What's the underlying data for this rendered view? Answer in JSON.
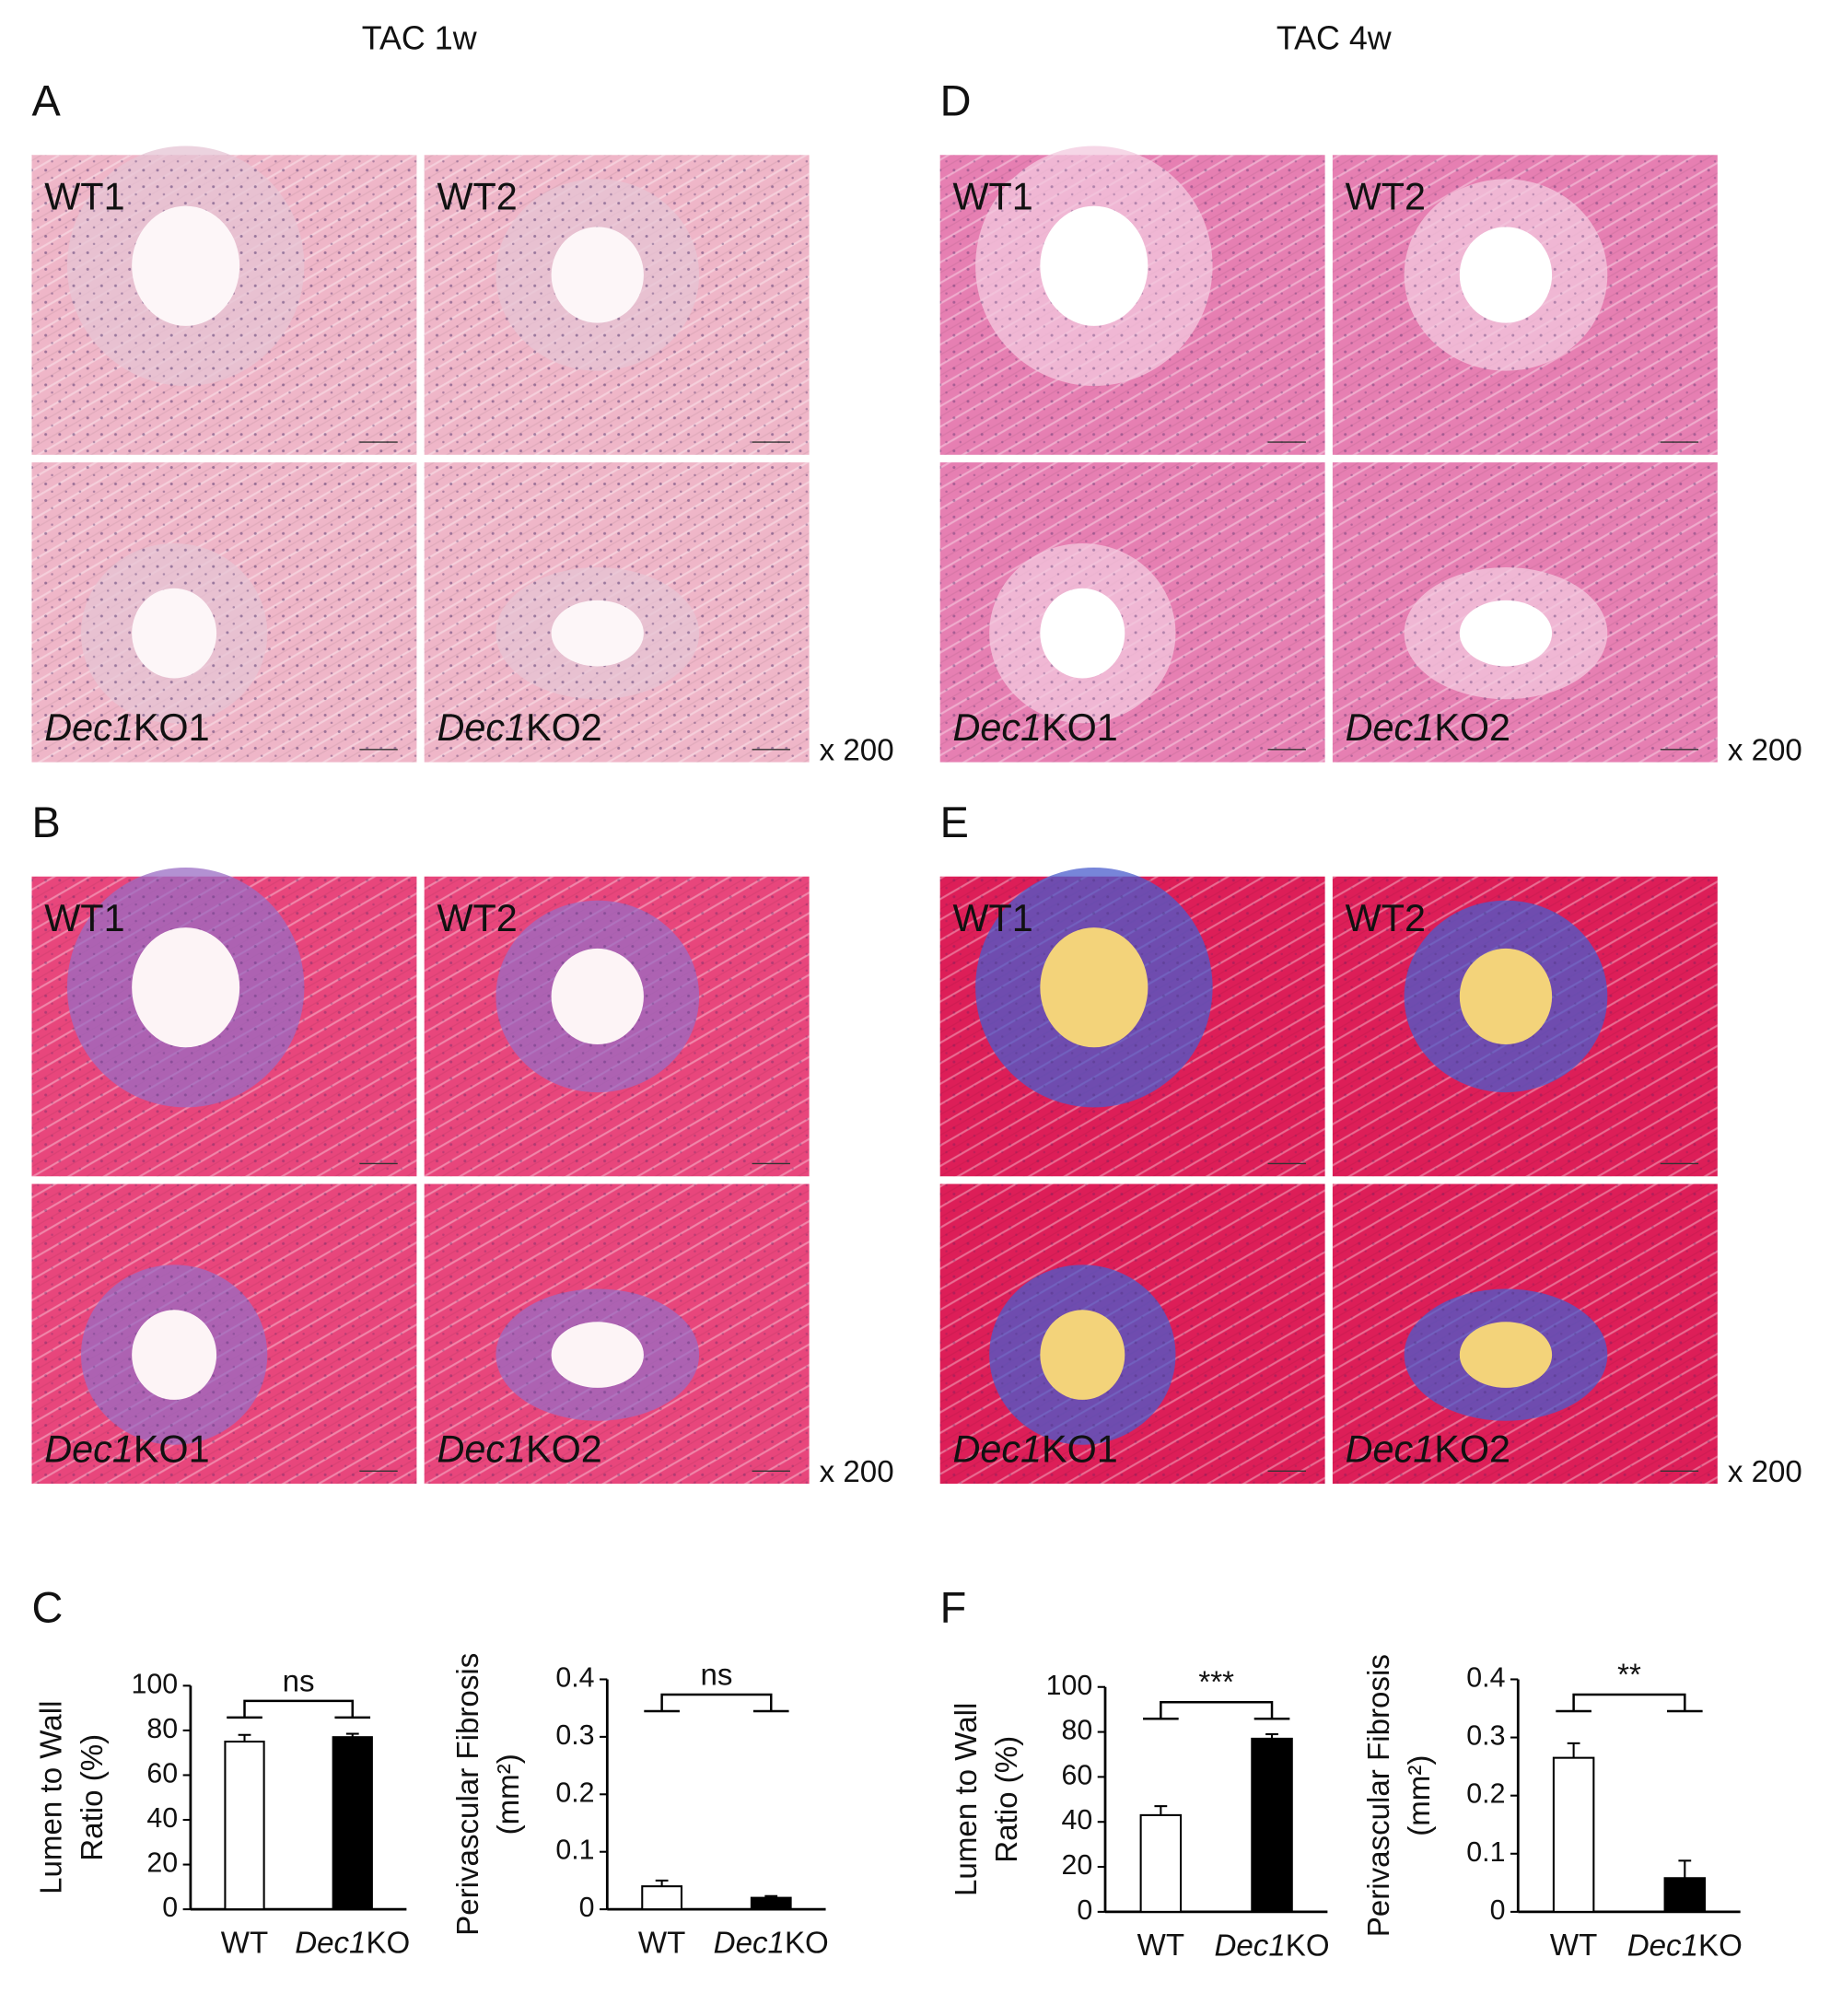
{
  "column_titles": [
    "TAC 1w",
    "TAC 4w"
  ],
  "panels": [
    {
      "letter": "A",
      "labels": [
        "WT1",
        "WT2",
        "Dec1KO1",
        "Dec1KO2"
      ],
      "magnification": "x 200"
    },
    {
      "letter": "B",
      "labels": [
        "WT1",
        "WT2",
        "Dec1KO1",
        "Dec1KO2"
      ],
      "magnification": "x 200"
    },
    {
      "letter": "D",
      "labels": [
        "WT1",
        "WT2",
        "Dec1KO1",
        "Dec1KO2"
      ],
      "magnification": "x 200"
    },
    {
      "letter": "E",
      "labels": [
        "WT1",
        "WT2",
        "Dec1KO1",
        "Dec1KO2"
      ],
      "magnification": "x 200"
    }
  ],
  "chart_panels": [
    "C",
    "F"
  ],
  "chart_data": [
    {
      "type": "bar",
      "y_label": [
        "Lumen to Wall",
        "Ratio (%)"
      ],
      "categories": [
        "WT",
        "Dec1KO"
      ],
      "values": [
        75,
        77
      ],
      "errors": [
        3,
        1.5
      ],
      "colors": [
        "#ffffff",
        "#000000"
      ],
      "edge_color": "#000000",
      "ylim": [
        0,
        100
      ],
      "yticks": [
        0,
        20,
        40,
        60,
        80,
        100
      ],
      "significance": "ns"
    },
    {
      "type": "bar",
      "y_label": [
        "Perivascular Fibrosis",
        "(mm²)"
      ],
      "categories": [
        "WT",
        "Dec1KO"
      ],
      "values": [
        0.04,
        0.02
      ],
      "errors": [
        0.01,
        0.003
      ],
      "colors": [
        "#ffffff",
        "#000000"
      ],
      "edge_color": "#000000",
      "ylim": [
        0,
        0.4
      ],
      "yticks": [
        0,
        0.1,
        0.2,
        0.3,
        0.4
      ],
      "significance": "ns"
    },
    {
      "type": "bar",
      "y_label": [
        "Lumen to Wall",
        "Ratio (%)"
      ],
      "categories": [
        "WT",
        "Dec1KO"
      ],
      "values": [
        43,
        77
      ],
      "errors": [
        4,
        2
      ],
      "colors": [
        "#ffffff",
        "#000000"
      ],
      "edge_color": "#000000",
      "ylim": [
        0,
        100
      ],
      "yticks": [
        0,
        20,
        40,
        60,
        80,
        100
      ],
      "significance": "***"
    },
    {
      "type": "bar",
      "y_label": [
        "Perivascular Fibrosis",
        "(mm²)"
      ],
      "categories": [
        "WT",
        "Dec1KO"
      ],
      "values": [
        0.265,
        0.058
      ],
      "errors": [
        0.025,
        0.03
      ],
      "colors": [
        "#ffffff",
        "#000000"
      ],
      "edge_color": "#000000",
      "ylim": [
        0,
        0.4
      ],
      "yticks": [
        0,
        0.1,
        0.2,
        0.3,
        0.4
      ],
      "significance": "**"
    }
  ]
}
